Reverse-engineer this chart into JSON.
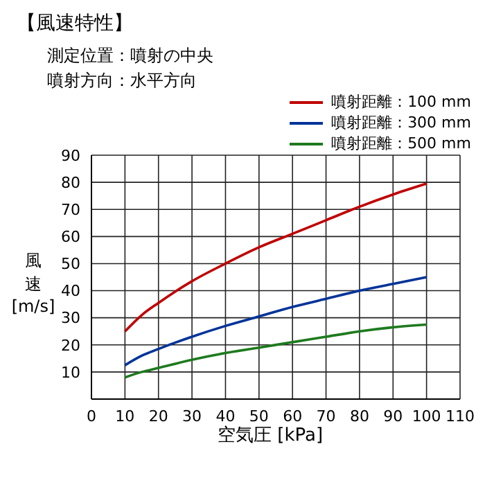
{
  "chart_data": {
    "type": "line",
    "title": "【風速特性】",
    "subtitle": "測定位置：噴射の中央",
    "annotations": [
      "噴射方向：水平方向"
    ],
    "xlabel": "空気圧 [kPa]",
    "ylabel": "風速 [m/s]",
    "x": [
      10,
      15,
      20,
      30,
      40,
      50,
      60,
      70,
      80,
      90,
      100
    ],
    "series": [
      {
        "name": "噴射距離：100 mm",
        "color": "#c00000",
        "values": [
          25,
          31,
          35.5,
          43.5,
          50,
          56,
          61,
          66,
          71,
          75.5,
          79.5
        ]
      },
      {
        "name": "噴射距離：300 mm",
        "color": "#003399",
        "values": [
          12.5,
          16,
          18.5,
          23,
          27,
          30.5,
          34,
          37,
          40,
          42.5,
          45
        ]
      },
      {
        "name": "噴射距離：500 mm",
        "color": "#1e7a1e",
        "values": [
          8,
          10,
          11.5,
          14.5,
          17,
          19,
          21,
          23,
          25,
          26.5,
          27.5
        ]
      }
    ],
    "xlim": [
      0,
      110
    ],
    "xticks": [
      0,
      10,
      20,
      30,
      40,
      50,
      60,
      70,
      80,
      90,
      100,
      110
    ],
    "ylim": [
      0,
      90
    ],
    "yticks": [
      {
        "value": 0,
        "label": null
      },
      10,
      20,
      30,
      40,
      50,
      60,
      70,
      80,
      90
    ],
    "grid": true,
    "legend": "top right",
    "marker": "none",
    "line_style": "solid"
  }
}
